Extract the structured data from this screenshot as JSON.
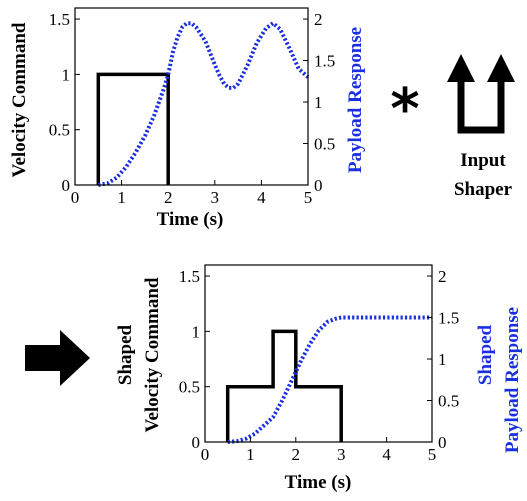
{
  "colors": {
    "command": "#000000",
    "response": "#1a2fe0"
  },
  "operator": {
    "symbol": "*"
  },
  "shaper": {
    "label_line1": "Input",
    "label_line2": "Shaper",
    "icon": "two-impulse-up-arrows-icon"
  },
  "result_arrow": {
    "icon": "right-arrow-icon"
  },
  "chart_data": [
    {
      "type": "line",
      "xlabel": "Time (s)",
      "ylabel": "Velocity Command",
      "ylabel_right": "Payload Response",
      "xlim": [
        0,
        5
      ],
      "ylim": [
        0,
        1.6
      ],
      "ylim_right": [
        0,
        2.133
      ],
      "x_ticks": [
        "0",
        "1",
        "2",
        "3",
        "4",
        "5"
      ],
      "y_ticks": [
        "0",
        "0.5",
        "1",
        "1.5"
      ],
      "y_ticks_right": [
        "0",
        "0.5",
        "1",
        "1.5",
        "2"
      ],
      "series": [
        {
          "axis": "left",
          "style": "solid",
          "points": [
            [
              0.5,
              0
            ],
            [
              0.5,
              1
            ],
            [
              2.0,
              1
            ],
            [
              2.0,
              0
            ]
          ]
        },
        {
          "axis": "right",
          "style": "dotted",
          "points": [
            [
              0.5,
              0
            ],
            [
              0.7,
              0.02
            ],
            [
              0.9,
              0.09
            ],
            [
              1.1,
              0.22
            ],
            [
              1.3,
              0.39
            ],
            [
              1.5,
              0.59
            ],
            [
              1.7,
              0.84
            ],
            [
              1.9,
              1.15
            ],
            [
              2.0,
              1.33
            ],
            [
              2.1,
              1.6
            ],
            [
              2.2,
              1.78
            ],
            [
              2.3,
              1.9
            ],
            [
              2.4,
              1.95
            ],
            [
              2.5,
              1.95
            ],
            [
              2.6,
              1.9
            ],
            [
              2.8,
              1.73
            ],
            [
              3.0,
              1.45
            ],
            [
              3.1,
              1.32
            ],
            [
              3.2,
              1.22
            ],
            [
              3.3,
              1.17
            ],
            [
              3.4,
              1.17
            ],
            [
              3.5,
              1.22
            ],
            [
              3.7,
              1.44
            ],
            [
              3.9,
              1.71
            ],
            [
              4.1,
              1.89
            ],
            [
              4.25,
              1.95
            ],
            [
              4.4,
              1.88
            ],
            [
              4.6,
              1.65
            ],
            [
              4.8,
              1.4
            ],
            [
              5.0,
              1.3
            ]
          ]
        }
      ]
    },
    {
      "type": "line",
      "xlabel": "Time (s)",
      "ylabel_line1": "Shaped",
      "ylabel_line2": "Velocity Command",
      "ylabel_right_line1": "Shaped",
      "ylabel_right_line2": "Payload Response",
      "xlim": [
        0,
        5
      ],
      "ylim": [
        0,
        1.6
      ],
      "ylim_right": [
        0,
        2.133
      ],
      "x_ticks": [
        "0",
        "1",
        "2",
        "3",
        "4",
        "5"
      ],
      "y_ticks": [
        "0",
        "0.5",
        "1",
        "1.5"
      ],
      "y_ticks_right": [
        "0",
        "0.5",
        "1",
        "1.5",
        "2"
      ],
      "series": [
        {
          "axis": "left",
          "style": "solid",
          "points": [
            [
              0.5,
              0
            ],
            [
              0.5,
              0.5
            ],
            [
              1.5,
              0.5
            ],
            [
              1.5,
              1
            ],
            [
              2.0,
              1
            ],
            [
              2.0,
              0.5
            ],
            [
              3.0,
              0.5
            ],
            [
              3.0,
              0
            ]
          ]
        },
        {
          "axis": "right",
          "style": "dotted",
          "points": [
            [
              0.5,
              0
            ],
            [
              0.7,
              0.01
            ],
            [
              0.9,
              0.04
            ],
            [
              1.1,
              0.1
            ],
            [
              1.3,
              0.2
            ],
            [
              1.5,
              0.3
            ],
            [
              1.7,
              0.5
            ],
            [
              1.9,
              0.73
            ],
            [
              2.1,
              0.96
            ],
            [
              2.3,
              1.17
            ],
            [
              2.5,
              1.34
            ],
            [
              2.7,
              1.45
            ],
            [
              2.9,
              1.49
            ],
            [
              3.0,
              1.5
            ],
            [
              5.0,
              1.5
            ]
          ]
        }
      ]
    }
  ]
}
